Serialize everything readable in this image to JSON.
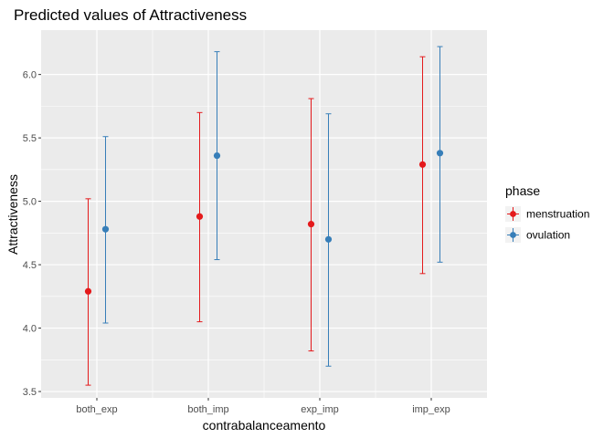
{
  "chart_data": {
    "type": "scatter",
    "title": "Predicted values of Attractiveness",
    "xlabel": "contrabalanceamento",
    "ylabel": "Attractiveness",
    "categories": [
      "both_exp",
      "both_imp",
      "exp_imp",
      "imp_exp"
    ],
    "ylim": [
      3.45,
      6.35
    ],
    "yticks": [
      3.5,
      4.0,
      4.5,
      5.0,
      5.5,
      6.0
    ],
    "ytick_labels": [
      "3.5",
      "4.0",
      "4.5",
      "5.0",
      "5.5",
      "6.0"
    ],
    "grid": true,
    "legend": {
      "title": "phase",
      "position": "right"
    },
    "series": [
      {
        "name": "menstruation",
        "color": "#E41A1C",
        "values": [
          4.29,
          4.88,
          4.82,
          5.29
        ],
        "lower": [
          3.55,
          4.05,
          3.82,
          4.43
        ],
        "upper": [
          5.02,
          5.7,
          5.81,
          6.14
        ]
      },
      {
        "name": "ovulation",
        "color": "#377EB8",
        "values": [
          4.78,
          5.36,
          4.7,
          5.38
        ],
        "lower": [
          4.04,
          4.54,
          3.7,
          4.52
        ],
        "upper": [
          5.51,
          6.18,
          5.69,
          6.22
        ]
      }
    ]
  }
}
